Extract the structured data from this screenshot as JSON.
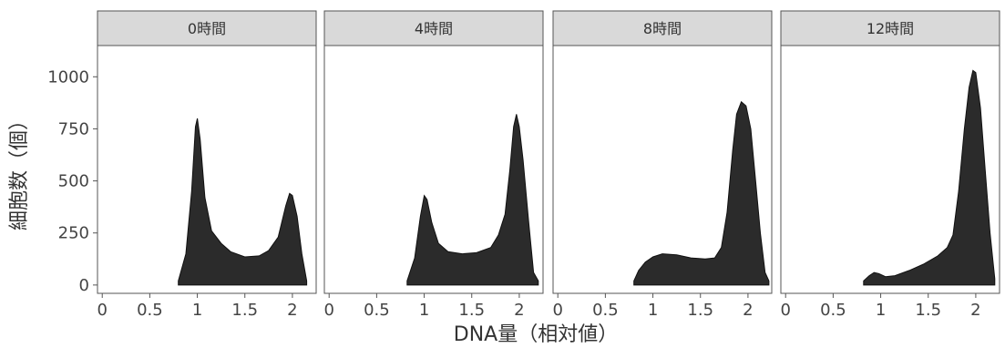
{
  "chart_data": {
    "type": "area",
    "xlabel": "DNA量（相対値）",
    "ylabel": "細胞数（個）",
    "xlim": [
      -0.05,
      2.25
    ],
    "ylim": [
      -40,
      1150
    ],
    "x_ticks": [
      0,
      0.5,
      1,
      1.5,
      2
    ],
    "x_tick_labels": [
      "0",
      "0.5",
      "1",
      "1.5",
      "2"
    ],
    "y_ticks": [
      0,
      250,
      500,
      750,
      1000
    ],
    "y_tick_labels": [
      "0",
      "250",
      "500",
      "750",
      "1000"
    ],
    "fill_color": "#2b2b2b",
    "strip_color": "#d9d9d9",
    "panels": [
      {
        "title": "0時間",
        "points": [
          [
            0.8,
            20
          ],
          [
            0.88,
            150
          ],
          [
            0.94,
            450
          ],
          [
            0.98,
            760
          ],
          [
            1.0,
            800
          ],
          [
            1.03,
            700
          ],
          [
            1.08,
            420
          ],
          [
            1.15,
            260
          ],
          [
            1.25,
            200
          ],
          [
            1.35,
            160
          ],
          [
            1.5,
            135
          ],
          [
            1.65,
            140
          ],
          [
            1.75,
            165
          ],
          [
            1.85,
            230
          ],
          [
            1.93,
            380
          ],
          [
            1.97,
            440
          ],
          [
            2.0,
            430
          ],
          [
            2.05,
            330
          ],
          [
            2.1,
            150
          ],
          [
            2.15,
            20
          ]
        ]
      },
      {
        "title": "4時間",
        "points": [
          [
            0.82,
            20
          ],
          [
            0.9,
            130
          ],
          [
            0.96,
            330
          ],
          [
            1.0,
            430
          ],
          [
            1.03,
            410
          ],
          [
            1.08,
            300
          ],
          [
            1.15,
            200
          ],
          [
            1.25,
            160
          ],
          [
            1.4,
            150
          ],
          [
            1.55,
            155
          ],
          [
            1.7,
            180
          ],
          [
            1.78,
            240
          ],
          [
            1.85,
            340
          ],
          [
            1.9,
            550
          ],
          [
            1.94,
            760
          ],
          [
            1.97,
            820
          ],
          [
            2.0,
            760
          ],
          [
            2.04,
            600
          ],
          [
            2.1,
            300
          ],
          [
            2.15,
            60
          ],
          [
            2.2,
            20
          ]
        ]
      },
      {
        "title": "8時間",
        "points": [
          [
            0.8,
            20
          ],
          [
            0.85,
            70
          ],
          [
            0.92,
            110
          ],
          [
            1.0,
            135
          ],
          [
            1.1,
            150
          ],
          [
            1.25,
            145
          ],
          [
            1.4,
            130
          ],
          [
            1.55,
            125
          ],
          [
            1.65,
            130
          ],
          [
            1.72,
            180
          ],
          [
            1.78,
            350
          ],
          [
            1.84,
            650
          ],
          [
            1.88,
            820
          ],
          [
            1.93,
            880
          ],
          [
            1.98,
            860
          ],
          [
            2.03,
            750
          ],
          [
            2.08,
            500
          ],
          [
            2.13,
            250
          ],
          [
            2.18,
            60
          ],
          [
            2.22,
            20
          ]
        ]
      },
      {
        "title": "12時間",
        "points": [
          [
            0.82,
            20
          ],
          [
            0.88,
            45
          ],
          [
            0.93,
            60
          ],
          [
            0.98,
            55
          ],
          [
            1.05,
            40
          ],
          [
            1.15,
            45
          ],
          [
            1.3,
            70
          ],
          [
            1.45,
            100
          ],
          [
            1.6,
            140
          ],
          [
            1.7,
            180
          ],
          [
            1.76,
            240
          ],
          [
            1.82,
            450
          ],
          [
            1.88,
            750
          ],
          [
            1.93,
            950
          ],
          [
            1.97,
            1030
          ],
          [
            2.0,
            1020
          ],
          [
            2.05,
            850
          ],
          [
            2.1,
            550
          ],
          [
            2.15,
            250
          ],
          [
            2.2,
            30
          ]
        ]
      }
    ]
  }
}
